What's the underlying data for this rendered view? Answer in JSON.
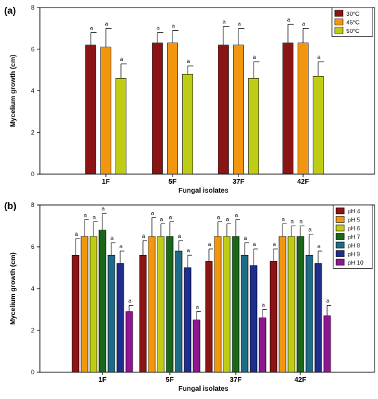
{
  "chart_data": [
    {
      "type": "bar",
      "panel_label": "(a)",
      "categories": [
        "1F",
        "5F",
        "37F",
        "42F"
      ],
      "xlabel": "Fungal isolates",
      "ylabel": "Mycelium growth (cm)",
      "ylim": [
        0,
        8
      ],
      "yticks": [
        "0",
        "2",
        "4",
        "6",
        "8"
      ],
      "error_bars": true,
      "legend_position": "top-right",
      "series": [
        {
          "name": "30°C",
          "color": "#8B1414",
          "values": [
            6.2,
            6.3,
            6.2,
            6.3
          ],
          "errors": [
            0.6,
            0.5,
            0.9,
            0.9
          ],
          "labels": [
            "a",
            "a",
            "a",
            "a"
          ]
        },
        {
          "name": "45°C",
          "color": "#F2960F",
          "values": [
            6.1,
            6.3,
            6.2,
            6.3
          ],
          "errors": [
            0.9,
            0.6,
            0.8,
            0.7
          ],
          "labels": [
            "a",
            "a",
            "a",
            "a"
          ]
        },
        {
          "name": "50°C",
          "color": "#BFCC14",
          "values": [
            4.6,
            4.8,
            4.6,
            4.7
          ],
          "errors": [
            0.7,
            0.4,
            0.8,
            0.7
          ],
          "labels": [
            "a",
            "a",
            "a",
            "a"
          ]
        }
      ]
    },
    {
      "type": "bar",
      "panel_label": "(b)",
      "categories": [
        "1F",
        "5F",
        "37F",
        "42F"
      ],
      "xlabel": "Fungal isolates",
      "ylabel": "Mycelium growth (cm)",
      "ylim": [
        0,
        8
      ],
      "yticks": [
        "0",
        "2",
        "4",
        "6",
        "8"
      ],
      "error_bars": true,
      "legend_position": "top-right",
      "series": [
        {
          "name": "pH 4",
          "color": "#8B1414",
          "values": [
            5.6,
            5.6,
            5.3,
            5.3
          ],
          "errors": [
            0.8,
            0.7,
            0.6,
            0.6
          ],
          "labels": [
            "a",
            "a",
            "a",
            "a"
          ]
        },
        {
          "name": "pH 5",
          "color": "#F2960F",
          "values": [
            6.5,
            6.5,
            6.5,
            6.5
          ],
          "errors": [
            0.8,
            0.9,
            0.7,
            0.6
          ],
          "labels": [
            "a",
            "a",
            "a",
            "a"
          ]
        },
        {
          "name": "pH 6",
          "color": "#BFCC14",
          "values": [
            6.5,
            6.5,
            6.5,
            6.5
          ],
          "errors": [
            0.7,
            0.6,
            0.6,
            0.5
          ],
          "labels": [
            "a",
            "a",
            "a",
            "a"
          ]
        },
        {
          "name": "pH 7",
          "color": "#1A661A",
          "values": [
            6.8,
            6.5,
            6.5,
            6.5
          ],
          "errors": [
            0.8,
            0.7,
            0.8,
            0.5
          ],
          "labels": [
            "a",
            "a",
            "a",
            "a"
          ]
        },
        {
          "name": "pH 8",
          "color": "#1E6B87",
          "values": [
            5.6,
            5.8,
            5.6,
            5.6
          ],
          "errors": [
            0.6,
            0.5,
            0.6,
            1.0
          ],
          "labels": [
            "a",
            "a",
            "a",
            "a"
          ]
        },
        {
          "name": "pH 9",
          "color": "#1F2E8C",
          "values": [
            5.2,
            5.0,
            5.1,
            5.2
          ],
          "errors": [
            0.6,
            0.6,
            0.8,
            0.6
          ],
          "labels": [
            "a",
            "a",
            "a",
            "a"
          ]
        },
        {
          "name": "pH 10",
          "color": "#8E1691",
          "values": [
            2.9,
            2.5,
            2.6,
            2.7
          ],
          "errors": [
            0.3,
            0.4,
            0.4,
            0.5
          ],
          "labels": [
            "a",
            "a",
            "a",
            "a"
          ]
        }
      ]
    }
  ]
}
